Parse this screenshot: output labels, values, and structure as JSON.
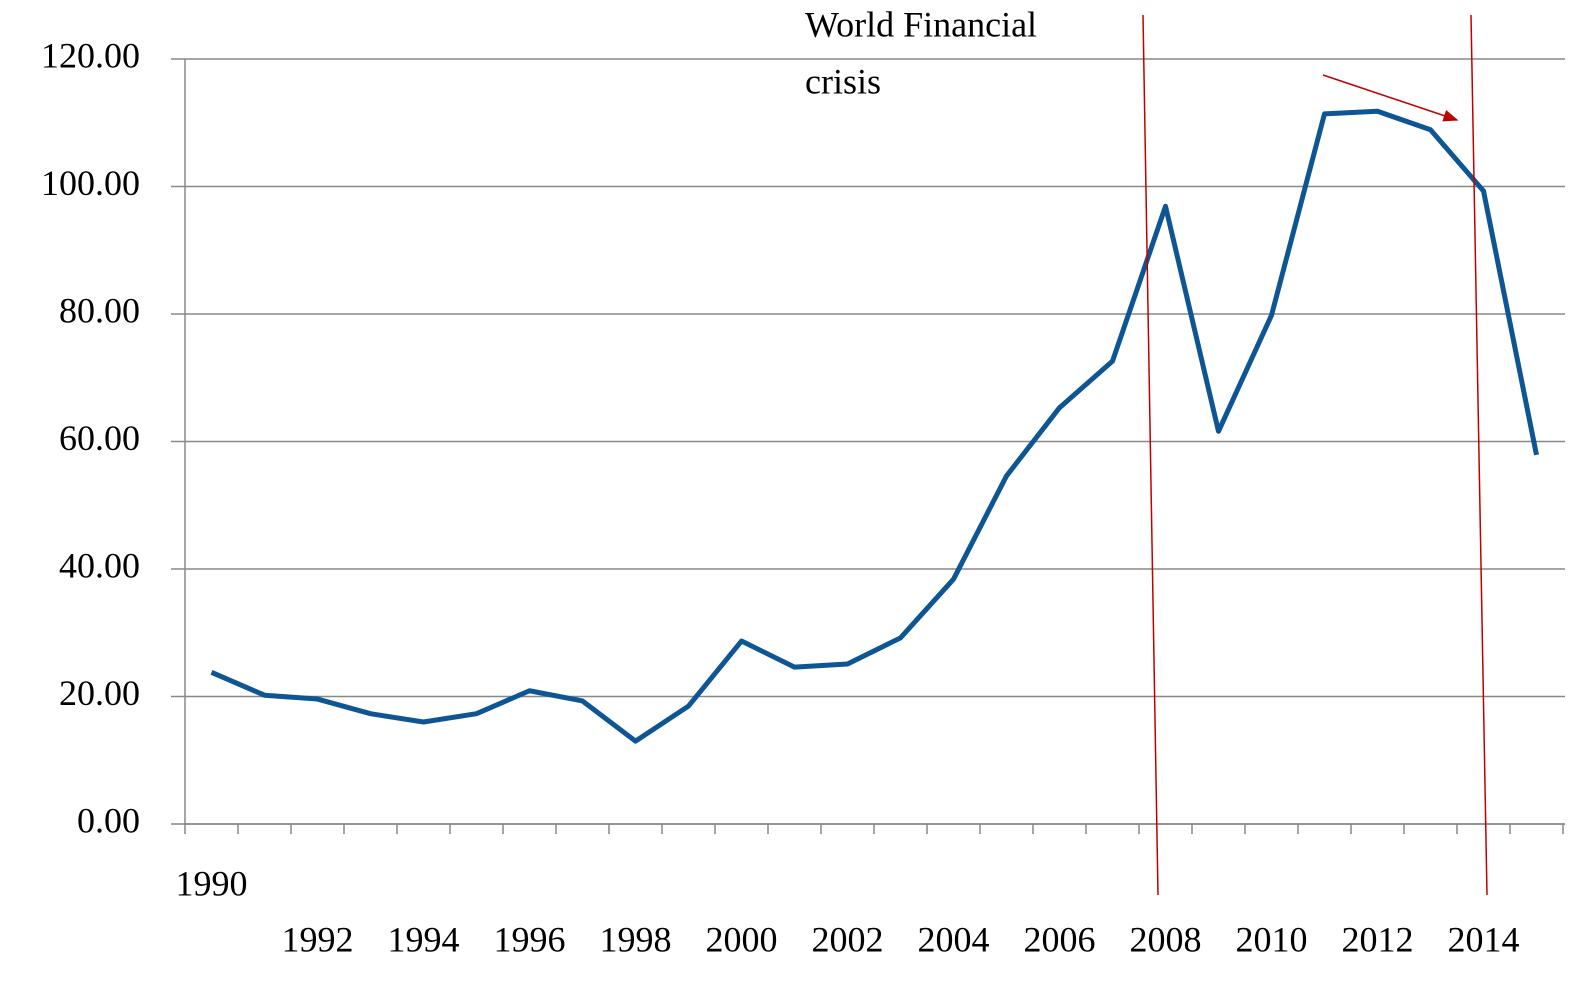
{
  "chart_data": {
    "type": "line",
    "annotation_lines": [
      "World Financial",
      "crisis"
    ],
    "categories": [
      "1990",
      null,
      "1992",
      null,
      "1994",
      null,
      "1996",
      null,
      "1998",
      null,
      "2000",
      null,
      "2002",
      null,
      "2004",
      null,
      "2006",
      null,
      "2008",
      null,
      "2010",
      null,
      "2012",
      null,
      "2014",
      null
    ],
    "series": [
      {
        "color": "#0e5594",
        "values": [
          23.8,
          20.2,
          19.6,
          17.3,
          16.0,
          17.3,
          20.9,
          19.3,
          13.0,
          18.5,
          28.7,
          24.6,
          25.1,
          29.2,
          38.4,
          54.6,
          65.3,
          72.6,
          96.9,
          61.6,
          79.8,
          111.4,
          111.8,
          108.9,
          99.3,
          57.9
        ]
      }
    ],
    "ylim": [
      0,
      120
    ],
    "yticks": [
      {
        "value": 0,
        "label": "0.00"
      },
      {
        "value": 20,
        "label": "20.00"
      },
      {
        "value": 40,
        "label": "40.00"
      },
      {
        "value": 60,
        "label": "60.00"
      },
      {
        "value": 80,
        "label": "80.00"
      },
      {
        "value": 100,
        "label": "100.00"
      },
      {
        "value": 120,
        "label": "120.00"
      }
    ],
    "grid": true
  }
}
